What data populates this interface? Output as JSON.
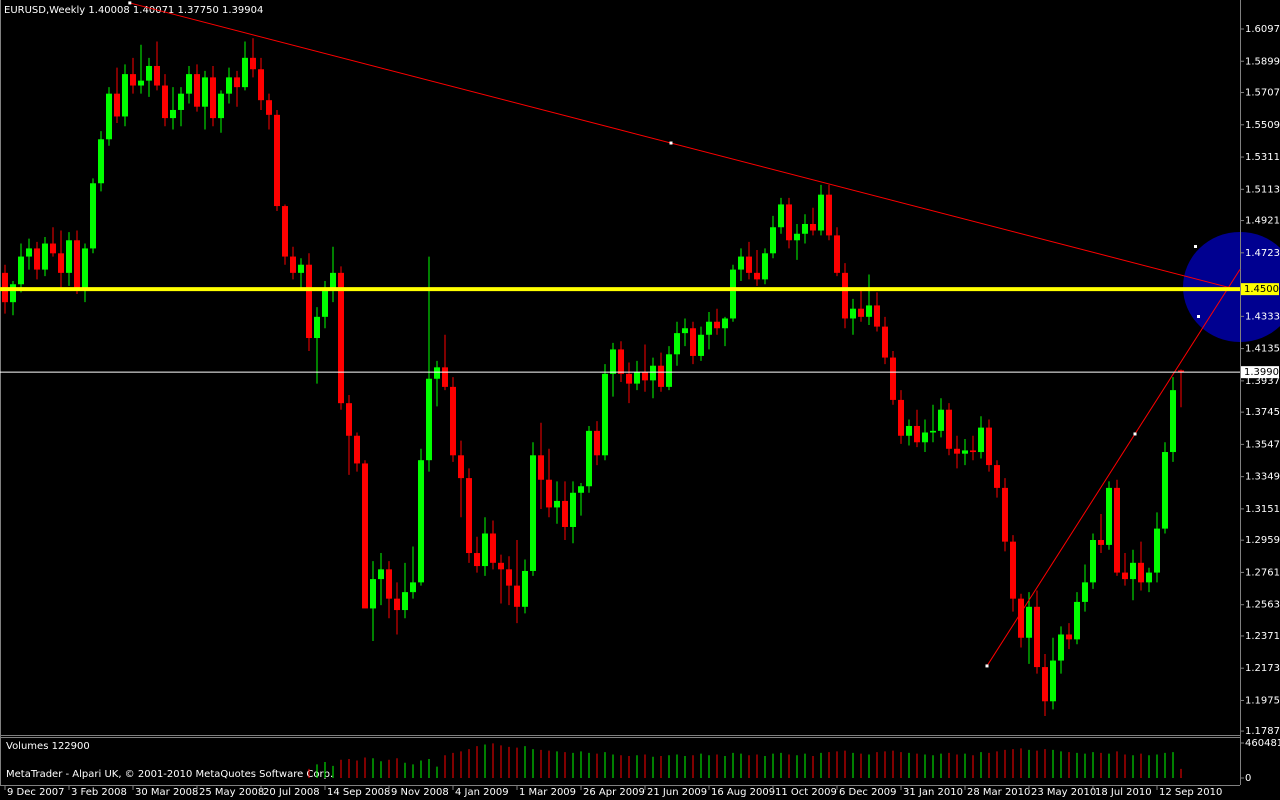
{
  "chart_data": {
    "type": "candlestick",
    "title": "EURUSD,Weekly  1.40008 1.40071 1.37750 1.39904",
    "volume_label": "Volumes 122900",
    "footer": "MetaTrader - Alpari UK, © 2001-2010 MetaQuotes Software Corp.",
    "up_color": "#00ff00",
    "down_color": "#ff0000",
    "xlim": [
      -0.625,
      154.375
    ],
    "xticks": [
      {
        "value": 0,
        "label": "9 Dec 2007"
      },
      {
        "value": 8,
        "label": "3 Feb 2008"
      },
      {
        "value": 16,
        "label": "30 Mar 2008"
      },
      {
        "value": 24,
        "label": "25 May 2008"
      },
      {
        "value": 32,
        "label": "20 Jul 2008"
      },
      {
        "value": 40,
        "label": "14 Sep 2008"
      },
      {
        "value": 48,
        "label": "9 Nov 2008"
      },
      {
        "value": 56,
        "label": "4 Jan 2009"
      },
      {
        "value": 64,
        "label": "1 Mar 2009"
      },
      {
        "value": 72,
        "label": "26 Apr 2009"
      },
      {
        "value": 80,
        "label": "21 Jun 2009"
      },
      {
        "value": 88,
        "label": "16 Aug 2009"
      },
      {
        "value": 96,
        "label": "11 Oct 2009"
      },
      {
        "value": 104,
        "label": "6 Dec 2009"
      },
      {
        "value": 112,
        "label": "31 Jan 2010"
      },
      {
        "value": 120,
        "label": "28 Mar 2010"
      },
      {
        "value": 128,
        "label": "23 May 2010"
      },
      {
        "value": 136,
        "label": "18 Jul 2010"
      },
      {
        "value": 144,
        "label": "12 Sep 2010"
      }
    ],
    "ylim": [
      1.1763,
      1.6275
    ],
    "yticks": [
      {
        "value": 1.6097,
        "label": "1.60970"
      },
      {
        "value": 1.5899,
        "label": "1.58990"
      },
      {
        "value": 1.5707,
        "label": "1.57070"
      },
      {
        "value": 1.5509,
        "label": "1.55090"
      },
      {
        "value": 1.5311,
        "label": "1.53110"
      },
      {
        "value": 1.5113,
        "label": "1.51130"
      },
      {
        "value": 1.4921,
        "label": "1.49210"
      },
      {
        "value": 1.4723,
        "label": "1.47230"
      },
      {
        "value": 1.4333,
        "label": "1.43330"
      },
      {
        "value": 1.4135,
        "label": "1.41350"
      },
      {
        "value": 1.3937,
        "label": "1.39370"
      },
      {
        "value": 1.3745,
        "label": "1.37450"
      },
      {
        "value": 1.3547,
        "label": "1.35470"
      },
      {
        "value": 1.3349,
        "label": "1.33490"
      },
      {
        "value": 1.3151,
        "label": "1.31510"
      },
      {
        "value": 1.2959,
        "label": "1.29590"
      },
      {
        "value": 1.2761,
        "label": "1.27610"
      },
      {
        "value": 1.2563,
        "label": "1.25630"
      },
      {
        "value": 1.2371,
        "label": "1.23710"
      },
      {
        "value": 1.2173,
        "label": "1.21730"
      },
      {
        "value": 1.1975,
        "label": "1.19750"
      },
      {
        "value": 1.1787,
        "label": "1.17870"
      }
    ],
    "vlim": [
      0,
      460481
    ],
    "vticks": [
      460481,
      0
    ],
    "hlines": [
      {
        "value": 1.45,
        "label": "1.45000",
        "color": "#ffff00"
      },
      {
        "value": 1.39904,
        "label": "1.39904",
        "color": "#ffffff"
      }
    ],
    "trendlines": [
      {
        "points": [
          [
            15.6,
            1.6257
          ],
          [
            83.25,
            1.5397
          ]
        ],
        "color": "#ff0000"
      },
      {
        "points": [
          [
            122.75,
            1.2187
          ],
          [
            141.25,
            1.3611
          ]
        ],
        "color": "#ff0000"
      }
    ],
    "ohlc": [
      [
        1.46,
        1.465,
        1.435,
        1.442
      ],
      [
        1.442,
        1.455,
        1.434,
        1.453
      ],
      [
        1.453,
        1.478,
        1.448,
        1.47
      ],
      [
        1.47,
        1.481,
        1.462,
        1.475
      ],
      [
        1.475,
        1.479,
        1.456,
        1.462
      ],
      [
        1.462,
        1.482,
        1.458,
        1.478
      ],
      [
        1.478,
        1.488,
        1.47,
        1.472
      ],
      [
        1.472,
        1.486,
        1.449,
        1.46
      ],
      [
        1.46,
        1.485,
        1.452,
        1.48
      ],
      [
        1.48,
        1.486,
        1.447,
        1.45
      ],
      [
        1.45,
        1.478,
        1.442,
        1.475
      ],
      [
        1.475,
        1.518,
        1.472,
        1.515
      ],
      [
        1.515,
        1.547,
        1.51,
        1.542
      ],
      [
        1.542,
        1.574,
        1.538,
        1.57
      ],
      [
        1.57,
        1.586,
        1.552,
        1.556
      ],
      [
        1.556,
        1.588,
        1.55,
        1.582
      ],
      [
        1.582,
        1.592,
        1.57,
        1.575
      ],
      [
        1.575,
        1.6,
        1.57,
        1.578
      ],
      [
        1.578,
        1.592,
        1.568,
        1.587
      ],
      [
        1.587,
        1.602,
        1.572,
        1.575
      ],
      [
        1.575,
        1.582,
        1.55,
        1.555
      ],
      [
        1.555,
        1.574,
        1.548,
        1.56
      ],
      [
        1.56,
        1.574,
        1.55,
        1.57
      ],
      [
        1.57,
        1.587,
        1.564,
        1.582
      ],
      [
        1.582,
        1.588,
        1.559,
        1.562
      ],
      [
        1.562,
        1.584,
        1.548,
        1.58
      ],
      [
        1.58,
        1.587,
        1.55,
        1.555
      ],
      [
        1.555,
        1.572,
        1.546,
        1.57
      ],
      [
        1.57,
        1.586,
        1.564,
        1.58
      ],
      [
        1.58,
        1.584,
        1.562,
        1.574
      ],
      [
        1.574,
        1.602,
        1.572,
        1.592
      ],
      [
        1.592,
        1.604,
        1.58,
        1.585
      ],
      [
        1.585,
        1.592,
        1.56,
        1.566
      ],
      [
        1.566,
        1.57,
        1.548,
        1.557
      ],
      [
        1.557,
        1.56,
        1.498,
        1.501
      ],
      [
        1.501,
        1.502,
        1.465,
        1.47
      ],
      [
        1.47,
        1.476,
        1.456,
        1.46
      ],
      [
        1.46,
        1.469,
        1.449,
        1.465
      ],
      [
        1.465,
        1.472,
        1.412,
        1.42
      ],
      [
        1.42,
        1.439,
        1.392,
        1.433
      ],
      [
        1.433,
        1.455,
        1.426,
        1.45
      ],
      [
        1.45,
        1.476,
        1.442,
        1.46
      ],
      [
        1.46,
        1.464,
        1.376,
        1.38
      ],
      [
        1.38,
        1.385,
        1.336,
        1.36
      ],
      [
        1.36,
        1.362,
        1.338,
        1.343
      ],
      [
        1.343,
        1.345,
        1.258,
        1.254
      ],
      [
        1.254,
        1.283,
        1.234,
        1.272
      ],
      [
        1.272,
        1.288,
        1.256,
        1.278
      ],
      [
        1.278,
        1.283,
        1.248,
        1.26
      ],
      [
        1.26,
        1.27,
        1.238,
        1.253
      ],
      [
        1.253,
        1.282,
        1.248,
        1.264
      ],
      [
        1.264,
        1.292,
        1.26,
        1.27
      ],
      [
        1.27,
        1.352,
        1.268,
        1.345
      ],
      [
        1.345,
        1.47,
        1.338,
        1.395
      ],
      [
        1.395,
        1.406,
        1.378,
        1.402
      ],
      [
        1.402,
        1.422,
        1.388,
        1.39
      ],
      [
        1.39,
        1.396,
        1.344,
        1.348
      ],
      [
        1.348,
        1.357,
        1.31,
        1.334
      ],
      [
        1.334,
        1.34,
        1.282,
        1.288
      ],
      [
        1.288,
        1.298,
        1.276,
        1.28
      ],
      [
        1.28,
        1.31,
        1.274,
        1.3
      ],
      [
        1.3,
        1.308,
        1.278,
        1.282
      ],
      [
        1.282,
        1.287,
        1.257,
        1.278
      ],
      [
        1.278,
        1.286,
        1.256,
        1.268
      ],
      [
        1.268,
        1.296,
        1.245,
        1.255
      ],
      [
        1.255,
        1.284,
        1.251,
        1.277
      ],
      [
        1.277,
        1.356,
        1.274,
        1.348
      ],
      [
        1.348,
        1.368,
        1.315,
        1.333
      ],
      [
        1.333,
        1.352,
        1.31,
        1.316
      ],
      [
        1.316,
        1.332,
        1.306,
        1.32
      ],
      [
        1.32,
        1.332,
        1.296,
        1.304
      ],
      [
        1.304,
        1.332,
        1.294,
        1.325
      ],
      [
        1.325,
        1.331,
        1.311,
        1.329
      ],
      [
        1.329,
        1.366,
        1.325,
        1.363
      ],
      [
        1.363,
        1.369,
        1.342,
        1.348
      ],
      [
        1.348,
        1.404,
        1.345,
        1.398
      ],
      [
        1.398,
        1.417,
        1.384,
        1.413
      ],
      [
        1.413,
        1.418,
        1.393,
        1.398
      ],
      [
        1.398,
        1.405,
        1.38,
        1.392
      ],
      [
        1.392,
        1.406,
        1.388,
        1.399
      ],
      [
        1.399,
        1.416,
        1.387,
        1.394
      ],
      [
        1.394,
        1.408,
        1.383,
        1.403
      ],
      [
        1.403,
        1.411,
        1.387,
        1.39
      ],
      [
        1.39,
        1.415,
        1.388,
        1.41
      ],
      [
        1.41,
        1.43,
        1.403,
        1.423
      ],
      [
        1.423,
        1.432,
        1.415,
        1.426
      ],
      [
        1.426,
        1.43,
        1.404,
        1.409
      ],
      [
        1.409,
        1.427,
        1.406,
        1.422
      ],
      [
        1.422,
        1.436,
        1.413,
        1.43
      ],
      [
        1.43,
        1.438,
        1.422,
        1.426
      ],
      [
        1.426,
        1.433,
        1.415,
        1.432
      ],
      [
        1.432,
        1.465,
        1.43,
        1.462
      ],
      [
        1.462,
        1.475,
        1.455,
        1.47
      ],
      [
        1.47,
        1.479,
        1.456,
        1.46
      ],
      [
        1.46,
        1.474,
        1.452,
        1.456
      ],
      [
        1.456,
        1.475,
        1.453,
        1.472
      ],
      [
        1.472,
        1.495,
        1.469,
        1.488
      ],
      [
        1.488,
        1.506,
        1.484,
        1.502
      ],
      [
        1.502,
        1.506,
        1.475,
        1.48
      ],
      [
        1.48,
        1.49,
        1.468,
        1.484
      ],
      [
        1.484,
        1.496,
        1.478,
        1.49
      ],
      [
        1.49,
        1.5,
        1.483,
        1.486
      ],
      [
        1.486,
        1.514,
        1.483,
        1.508
      ],
      [
        1.508,
        1.514,
        1.48,
        1.483
      ],
      [
        1.483,
        1.488,
        1.458,
        1.46
      ],
      [
        1.46,
        1.466,
        1.426,
        1.432
      ],
      [
        1.432,
        1.444,
        1.422,
        1.438
      ],
      [
        1.438,
        1.449,
        1.43,
        1.433
      ],
      [
        1.433,
        1.459,
        1.428,
        1.44
      ],
      [
        1.44,
        1.448,
        1.424,
        1.427
      ],
      [
        1.427,
        1.433,
        1.404,
        1.408
      ],
      [
        1.408,
        1.412,
        1.379,
        1.382
      ],
      [
        1.382,
        1.388,
        1.355,
        1.36
      ],
      [
        1.36,
        1.37,
        1.354,
        1.366
      ],
      [
        1.366,
        1.376,
        1.353,
        1.356
      ],
      [
        1.356,
        1.37,
        1.35,
        1.362
      ],
      [
        1.362,
        1.379,
        1.356,
        1.363
      ],
      [
        1.363,
        1.383,
        1.359,
        1.376
      ],
      [
        1.376,
        1.38,
        1.348,
        1.352
      ],
      [
        1.352,
        1.36,
        1.34,
        1.349
      ],
      [
        1.349,
        1.358,
        1.342,
        1.351
      ],
      [
        1.351,
        1.36,
        1.345,
        1.35
      ],
      [
        1.35,
        1.372,
        1.346,
        1.365
      ],
      [
        1.365,
        1.37,
        1.338,
        1.342
      ],
      [
        1.342,
        1.345,
        1.322,
        1.328
      ],
      [
        1.328,
        1.334,
        1.289,
        1.295
      ],
      [
        1.295,
        1.299,
        1.252,
        1.26
      ],
      [
        1.26,
        1.263,
        1.23,
        1.236
      ],
      [
        1.236,
        1.264,
        1.22,
        1.255
      ],
      [
        1.255,
        1.265,
        1.214,
        1.218
      ],
      [
        1.218,
        1.226,
        1.188,
        1.197
      ],
      [
        1.197,
        1.236,
        1.192,
        1.222
      ],
      [
        1.222,
        1.243,
        1.214,
        1.238
      ],
      [
        1.238,
        1.245,
        1.229,
        1.235
      ],
      [
        1.235,
        1.264,
        1.232,
        1.258
      ],
      [
        1.258,
        1.281,
        1.252,
        1.27
      ],
      [
        1.27,
        1.3,
        1.266,
        1.296
      ],
      [
        1.296,
        1.312,
        1.288,
        1.293
      ],
      [
        1.293,
        1.332,
        1.29,
        1.328
      ],
      [
        1.328,
        1.333,
        1.274,
        1.276
      ],
      [
        1.276,
        1.288,
        1.268,
        1.272
      ],
      [
        1.272,
        1.29,
        1.259,
        1.282
      ],
      [
        1.282,
        1.295,
        1.265,
        1.27
      ],
      [
        1.27,
        1.279,
        1.264,
        1.276
      ],
      [
        1.276,
        1.313,
        1.27,
        1.303
      ],
      [
        1.303,
        1.356,
        1.3,
        1.35
      ],
      [
        1.35,
        1.396,
        1.344,
        1.388
      ],
      [
        1.40008,
        1.40071,
        1.3775,
        1.39904
      ]
    ],
    "volumes": [
      0,
      0,
      0,
      0,
      0,
      0,
      0,
      0,
      0,
      0,
      0,
      0,
      0,
      0,
      0,
      0,
      0,
      0,
      0,
      0,
      0,
      0,
      0,
      0,
      0,
      0,
      0,
      0,
      0,
      0,
      0,
      0,
      0,
      0,
      0,
      0,
      0,
      0,
      120000,
      180000,
      210000,
      160000,
      240000,
      250000,
      230000,
      270000,
      260000,
      220000,
      240000,
      260000,
      200000,
      180000,
      230000,
      250000,
      150000,
      300000,
      330000,
      350000,
      380000,
      420000,
      440000,
      455000,
      430000,
      410000,
      400000,
      420000,
      380000,
      370000,
      360000,
      350000,
      340000,
      330000,
      350000,
      330000,
      320000,
      340000,
      310000,
      300000,
      290000,
      300000,
      310000,
      280000,
      290000,
      300000,
      310000,
      290000,
      300000,
      320000,
      300000,
      310000,
      290000,
      330000,
      320000,
      300000,
      310000,
      290000,
      320000,
      330000,
      310000,
      300000,
      320000,
      290000,
      330000,
      340000,
      350000,
      360000,
      330000,
      320000,
      310000,
      340000,
      350000,
      360000,
      340000,
      330000,
      320000,
      310000,
      300000,
      320000,
      330000,
      310000,
      320000,
      300000,
      340000,
      330000,
      350000,
      370000,
      380000,
      390000,
      370000,
      360000,
      380000,
      370000,
      350000,
      340000,
      330000,
      320000,
      340000,
      330000,
      320000,
      350000,
      310000,
      300000,
      320000,
      300000,
      310000,
      330000,
      340000,
      120000
    ]
  }
}
